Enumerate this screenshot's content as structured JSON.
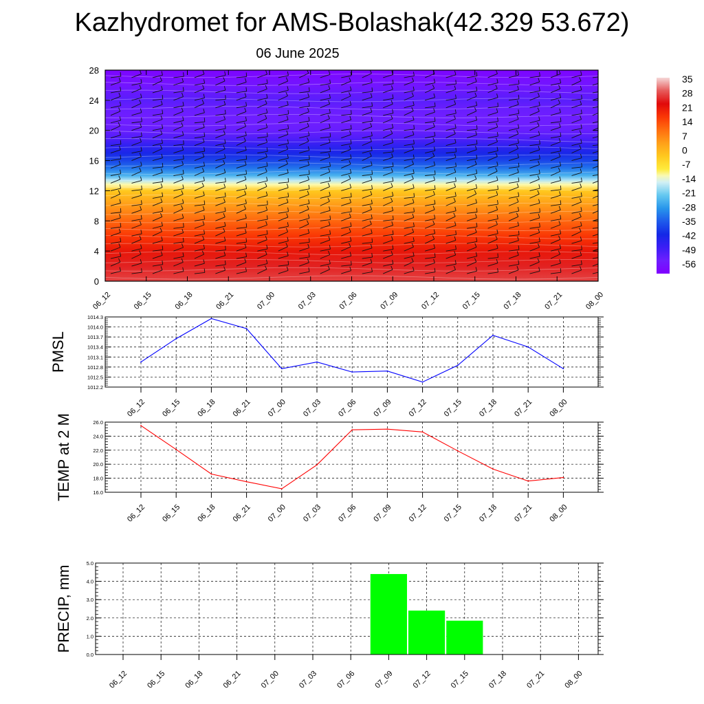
{
  "header": {
    "title": "Kazhydromet for AMS-Bolashak(42.329 53.672)",
    "date": "06 June 2025"
  },
  "chart_data": [
    {
      "type": "heatmap",
      "title": "",
      "x_ticks": [
        "06_12",
        "06_15",
        "06_18",
        "06_21",
        "07_00",
        "07_03",
        "07_06",
        "07_09",
        "07_12",
        "07_15",
        "07_18",
        "07_21",
        "08_00"
      ],
      "y_ticks": [
        "0",
        "4",
        "8",
        "12",
        "16",
        "20",
        "24",
        "28"
      ],
      "ylim": [
        0,
        28
      ],
      "colorbar_labels": [
        "35",
        "28",
        "21",
        "14",
        "7",
        "0",
        "-7",
        "-14",
        "-21",
        "-28",
        "-35",
        "-42",
        "-49",
        "-56"
      ],
      "colorbar_range": [
        -63,
        42
      ],
      "temperature_profile": [
        {
          "y": 0,
          "value": 33
        },
        {
          "y": 2,
          "value": 30
        },
        {
          "y": 4,
          "value": 26
        },
        {
          "y": 6,
          "value": 21
        },
        {
          "y": 8,
          "value": 15
        },
        {
          "y": 10,
          "value": 8
        },
        {
          "y": 12,
          "value": 0
        },
        {
          "y": 12.8,
          "value": -10
        },
        {
          "y": 13.4,
          "value": -16
        },
        {
          "y": 14,
          "value": -24
        },
        {
          "y": 15,
          "value": -32
        },
        {
          "y": 16,
          "value": -38
        },
        {
          "y": 17,
          "value": -43
        },
        {
          "y": 18,
          "value": -47
        },
        {
          "y": 19,
          "value": -52
        },
        {
          "y": 20,
          "value": -55
        },
        {
          "y": 21,
          "value": -56
        },
        {
          "y": 22,
          "value": -56
        },
        {
          "y": 23,
          "value": -55
        },
        {
          "y": 24,
          "value": -53
        },
        {
          "y": 26,
          "value": -58
        },
        {
          "y": 28,
          "value": -62
        }
      ],
      "grid": false,
      "overlay": "wind barbs and contour lines"
    },
    {
      "type": "line",
      "ylabel": "PMSL",
      "x": [
        "06_12",
        "06_15",
        "06_18",
        "06_21",
        "07_00",
        "07_03",
        "07_06",
        "07_09",
        "07_12",
        "07_15",
        "07_18",
        "07_21",
        "08_00"
      ],
      "values": [
        1012.95,
        1013.65,
        1014.25,
        1013.95,
        1012.75,
        1012.95,
        1012.65,
        1012.68,
        1012.35,
        1012.85,
        1013.75,
        1013.4,
        1012.75
      ],
      "ylim": [
        1012.2,
        1014.3
      ],
      "y_ticks": [
        "1012.2",
        "1012.5",
        "1012.8",
        "1013.1",
        "1013.4",
        "1013.7",
        "1014.0",
        "1014.3"
      ],
      "color": "#0000ff",
      "grid": true
    },
    {
      "type": "line",
      "ylabel": "TEMP at 2 M",
      "x": [
        "06_12",
        "06_15",
        "06_18",
        "06_21",
        "07_00",
        "07_03",
        "07_06",
        "07_09",
        "07_12",
        "07_15",
        "07_18",
        "07_21",
        "08_00"
      ],
      "values": [
        25.5,
        22.1,
        18.6,
        17.5,
        16.5,
        19.9,
        24.9,
        25.0,
        24.6,
        21.9,
        19.3,
        17.6,
        18.1
      ],
      "ylim": [
        16.0,
        26.0
      ],
      "y_ticks": [
        "16.0",
        "18.0",
        "20.0",
        "22.0",
        "24.0",
        "26.0"
      ],
      "color": "#ff0000",
      "grid": true
    },
    {
      "type": "bar",
      "ylabel": "PRECIP, mm",
      "categories": [
        "06_12",
        "06_15",
        "06_18",
        "06_21",
        "07_00",
        "07_03",
        "07_06",
        "07_09",
        "07_12",
        "07_15",
        "07_18",
        "07_21",
        "08_00"
      ],
      "values": [
        0,
        0,
        0,
        0,
        0,
        0,
        0,
        4.4,
        2.4,
        1.85,
        0,
        0,
        0
      ],
      "ylim": [
        0,
        5.0
      ],
      "y_ticks": [
        "0.0",
        "1.0",
        "2.0",
        "3.0",
        "4.0",
        "5.0"
      ],
      "color": "#00ff00",
      "grid": true
    }
  ]
}
